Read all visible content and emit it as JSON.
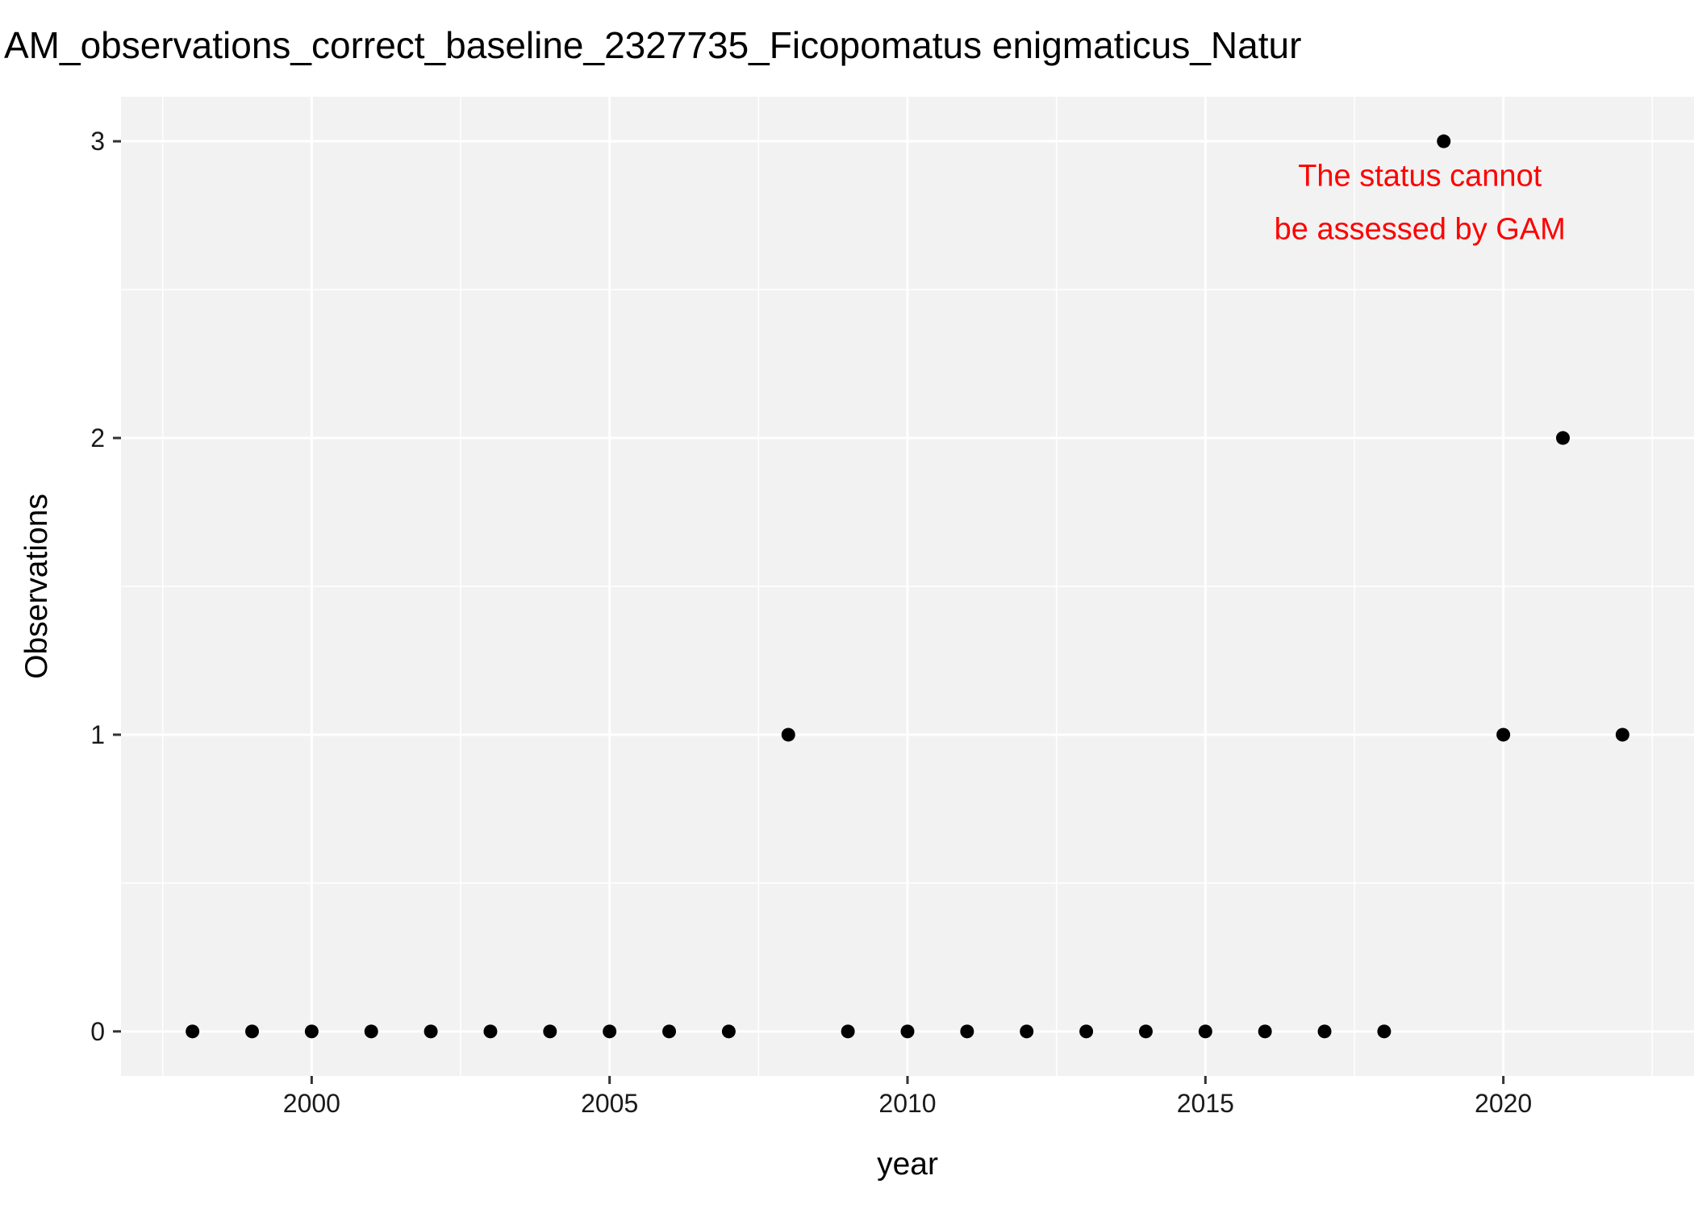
{
  "chart_data": {
    "type": "scatter",
    "title": "AM_observations_correct_baseline_2327735_Ficopomatus enigmaticus_Natur",
    "xlabel": "year",
    "ylabel": "Observations",
    "x": [
      1998,
      1999,
      2000,
      2001,
      2002,
      2003,
      2004,
      2005,
      2006,
      2007,
      2008,
      2009,
      2010,
      2011,
      2012,
      2013,
      2014,
      2015,
      2016,
      2017,
      2018,
      2019,
      2020,
      2021,
      2022
    ],
    "y": [
      0,
      0,
      0,
      0,
      0,
      0,
      0,
      0,
      0,
      0,
      1,
      0,
      0,
      0,
      0,
      0,
      0,
      0,
      0,
      0,
      0,
      3,
      1,
      2,
      1
    ],
    "xlim": [
      1996.8,
      2023.2
    ],
    "ylim": [
      -0.15,
      3.15
    ],
    "x_ticks": [
      2000,
      2005,
      2010,
      2015,
      2020
    ],
    "x_tick_labels": [
      "2000",
      "2005",
      "2010",
      "2015",
      "2020"
    ],
    "y_ticks": [
      0,
      1,
      2,
      3
    ],
    "y_tick_labels": [
      "0",
      "1",
      "2",
      "3"
    ],
    "grid": true,
    "annotation": {
      "lines": [
        "The status cannot",
        "be assessed by GAM"
      ],
      "color": "#ff0000",
      "x": 2018.6,
      "y": 2.85
    },
    "colors": {
      "panel_background": "#f2f2f2",
      "grid_major": "#ffffff",
      "grid_minor": "#ffffff",
      "points": "#000000"
    }
  }
}
